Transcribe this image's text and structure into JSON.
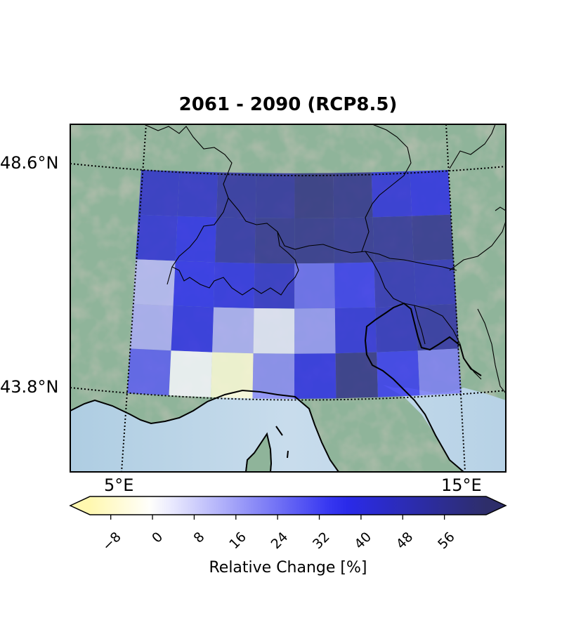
{
  "title": "2061 - 2090 (RCP8.5)",
  "axes": {
    "lat_labels": [
      "48.6°N",
      "43.8°N"
    ],
    "lon_labels": [
      "5°E",
      "15°E"
    ]
  },
  "colorbar": {
    "label": "Relative Change [%]",
    "ticks": [
      "−8",
      "0",
      "8",
      "16",
      "24",
      "32",
      "40",
      "48",
      "56"
    ],
    "colors": [
      "#fff8b0",
      "#ffffff",
      "#2a2af0",
      "#2e2e6a"
    ],
    "extend": "both"
  },
  "grid": {
    "rows": 5,
    "cols": 8,
    "values_percent": [
      [
        44,
        44,
        52,
        53,
        59,
        57,
        40,
        38
      ],
      [
        41,
        37,
        51,
        56,
        57,
        55,
        54,
        56
      ],
      [
        12,
        36,
        38,
        44,
        26,
        34,
        48,
        47
      ],
      [
        14,
        38,
        14,
        4,
        18,
        40,
        46,
        52
      ],
      [
        28,
        1,
        -6,
        20,
        38,
        58,
        34,
        22
      ]
    ]
  }
}
